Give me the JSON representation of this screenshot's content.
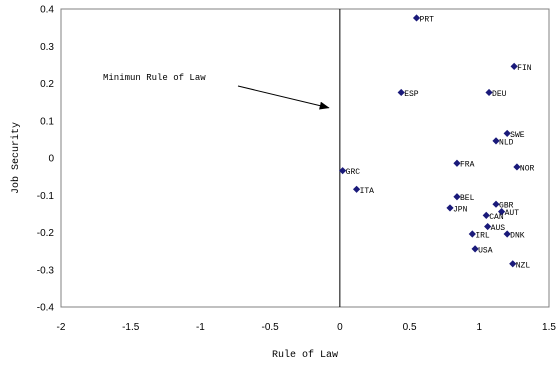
{
  "chart_data": {
    "type": "scatter",
    "title": "",
    "xlabel": "Rule of Law",
    "ylabel": "Job Security",
    "xlim": [
      -2,
      1.5
    ],
    "ylim": [
      -0.4,
      0.4
    ],
    "x_ticks": [
      "-2",
      "-1.5",
      "-1",
      "-0.5",
      "0",
      "0.5",
      "1",
      "1.5"
    ],
    "y_ticks": [
      "0.4",
      "0.3",
      "0.2",
      "0.1",
      "0",
      "-0.1",
      "-0.2",
      "-0.3",
      "-0.4"
    ],
    "marker_color": "#1a1a7a",
    "reference_line": {
      "x": 0
    },
    "annotation": {
      "text": "Minimun Rule of Law",
      "arrow_to": [
        -0.08,
        0.135
      ]
    },
    "points": [
      {
        "label": "PRT",
        "x": 0.55,
        "y": 0.376
      },
      {
        "label": "FIN",
        "x": 1.25,
        "y": 0.246
      },
      {
        "label": "ESP",
        "x": 0.44,
        "y": 0.176
      },
      {
        "label": "DEU",
        "x": 1.07,
        "y": 0.176
      },
      {
        "label": "SWE",
        "x": 1.2,
        "y": 0.066
      },
      {
        "label": "NLD",
        "x": 1.12,
        "y": 0.046
      },
      {
        "label": "FRA",
        "x": 0.84,
        "y": -0.014
      },
      {
        "label": "NOR",
        "x": 1.27,
        "y": -0.024
      },
      {
        "label": "GRC",
        "x": 0.02,
        "y": -0.034
      },
      {
        "label": "ITA",
        "x": 0.12,
        "y": -0.084
      },
      {
        "label": "BEL",
        "x": 0.84,
        "y": -0.104
      },
      {
        "label": "GBR",
        "x": 1.12,
        "y": -0.124
      },
      {
        "label": "JPN",
        "x": 0.79,
        "y": -0.134
      },
      {
        "label": "AUT",
        "x": 1.16,
        "y": -0.144
      },
      {
        "label": "CAN",
        "x": 1.05,
        "y": -0.154
      },
      {
        "label": "AUS",
        "x": 1.06,
        "y": -0.184
      },
      {
        "label": "IRL",
        "x": 0.95,
        "y": -0.204
      },
      {
        "label": "DNK",
        "x": 1.2,
        "y": -0.204
      },
      {
        "label": "USA",
        "x": 0.97,
        "y": -0.244
      },
      {
        "label": "NZL",
        "x": 1.24,
        "y": -0.284
      }
    ]
  }
}
